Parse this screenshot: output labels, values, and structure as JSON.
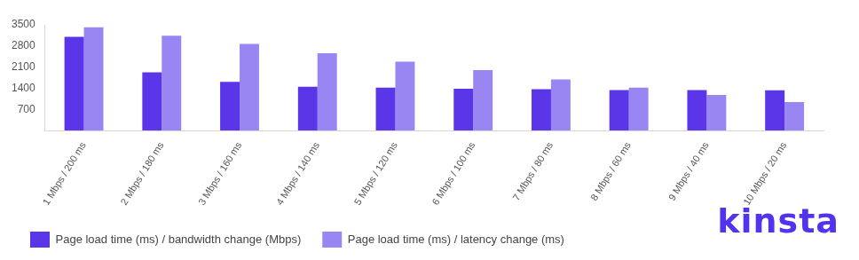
{
  "chart_data": {
    "type": "bar",
    "categories": [
      "1 Mbps / 200 ms",
      "2 Mbps / 180 ms",
      "3 Mbps / 160 ms",
      "4 Mbps / 140 ms",
      "5 Mbps / 120 ms",
      "6 Mbps / 100 ms",
      "7 Mbps / 80 ms",
      "8 Mbps / 60 ms",
      "9 Mbps / 40 ms",
      "10 Mbps / 20 ms"
    ],
    "series": [
      {
        "name": "Page load time (ms) / bandwidth change (Mbps)",
        "color": "#5b36e8",
        "values": [
          3100,
          1930,
          1610,
          1450,
          1420,
          1380,
          1370,
          1340,
          1340,
          1330
        ]
      },
      {
        "name": "Page load time (ms) / latency change (ms)",
        "color": "#9a86f3",
        "values": [
          3420,
          3140,
          2870,
          2560,
          2280,
          2000,
          1690,
          1420,
          1180,
          940
        ]
      }
    ],
    "ylim": [
      0,
      3500
    ],
    "yticks": [
      700,
      1400,
      2100,
      2800,
      3500
    ],
    "grid": false,
    "legend": "bottom",
    "annotations": [
      "kinsta"
    ]
  }
}
